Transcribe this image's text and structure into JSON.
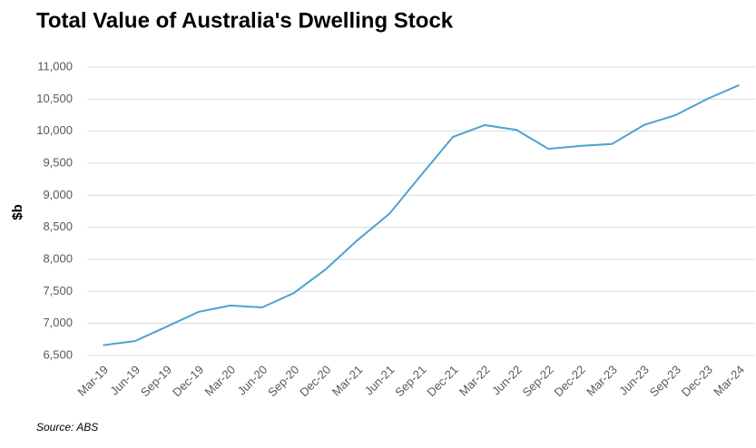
{
  "chart_data": {
    "type": "line",
    "title": "Total Value of Australia's Dwelling Stock",
    "y_label": "$b",
    "source": "Source: ABS",
    "categories": [
      "Mar-19",
      "Jun-19",
      "Sep-19",
      "Dec-19",
      "Mar-20",
      "Jun-20",
      "Sep-20",
      "Dec-20",
      "Mar-21",
      "Jun-21",
      "Sep-21",
      "Dec-21",
      "Mar-22",
      "Jun-22",
      "Sep-22",
      "Dec-22",
      "Mar-23",
      "Jun-23",
      "Sep-23",
      "Dec-23",
      "Mar-24"
    ],
    "values": [
      6660,
      6725,
      6950,
      7180,
      7280,
      7250,
      7475,
      7845,
      8300,
      8710,
      9315,
      9910,
      10095,
      10020,
      9725,
      9770,
      9800,
      10095,
      10250,
      10505,
      10720
    ],
    "color": "#4ba3d0",
    "ylim": [
      6500,
      11000
    ],
    "yticks": [
      {
        "value": 6500,
        "label": "6,500"
      },
      {
        "value": 7000,
        "label": "7,000"
      },
      {
        "value": 7500,
        "label": "7,500"
      },
      {
        "value": 8000,
        "label": "8,000"
      },
      {
        "value": 8500,
        "label": "8,500"
      },
      {
        "value": 9000,
        "label": "9,000"
      },
      {
        "value": 9500,
        "label": "9,500"
      },
      {
        "value": 10000,
        "label": "10,000"
      },
      {
        "value": 10500,
        "label": "10,500"
      },
      {
        "value": 11000,
        "label": "11,000"
      }
    ],
    "grid": true
  }
}
